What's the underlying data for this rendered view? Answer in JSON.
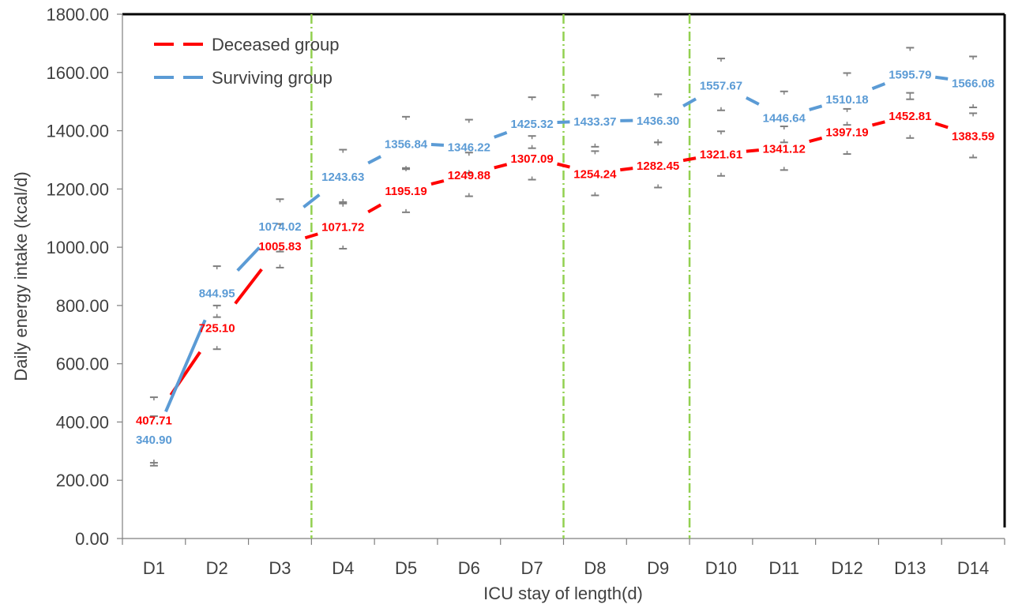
{
  "chart_data": {
    "type": "line",
    "categories": [
      "D1",
      "D2",
      "D3",
      "D4",
      "D5",
      "D6",
      "D7",
      "D8",
      "D9",
      "D10",
      "D11",
      "D12",
      "D13",
      "D14"
    ],
    "series": [
      {
        "name": "Deceased group",
        "color": "#ff0000",
        "values": [
          407.71,
          725.1,
          1005.83,
          1071.72,
          1195.19,
          1249.88,
          1307.09,
          1254.24,
          1282.45,
          1321.61,
          1341.12,
          1397.19,
          1452.81,
          1383.59
        ],
        "labels": [
          "407.71",
          "725.10",
          "1005.83",
          "1071.72",
          "1195.19",
          "1249.88",
          "1307.09",
          "1254.24",
          "1282.45",
          "1321.61",
          "1341.12",
          "1397.19",
          "1452.81",
          "1383.59"
        ],
        "error_low": [
          250,
          650,
          930,
          995,
          1120,
          1175,
          1232,
          1178,
          1205,
          1245,
          1265,
          1320,
          1375,
          1308
        ],
        "error_high": [
          485,
          800,
          1080,
          1150,
          1272,
          1325,
          1382,
          1330,
          1360,
          1398,
          1415,
          1475,
          1530,
          1460
        ]
      },
      {
        "name": "Surviving group",
        "color": "#5b9bd5",
        "values": [
          340.9,
          844.95,
          1074.02,
          1243.63,
          1356.84,
          1346.22,
          1425.32,
          1433.37,
          1436.3,
          1557.67,
          1446.64,
          1510.18,
          1595.79,
          1566.08
        ],
        "labels": [
          "340.90",
          "844.95",
          "1074.02",
          "1243.63",
          "1356.84",
          "1346.22",
          "1425.32",
          "1433.37",
          "1436.30",
          "1557.67",
          "1446.64",
          "1510.18",
          "1595.79",
          "1566.08"
        ],
        "error_low": [
          260,
          760,
          985,
          1155,
          1268,
          1255,
          1340,
          1345,
          1360,
          1470,
          1360,
          1420,
          1508,
          1480
        ],
        "error_high": [
          420,
          935,
          1165,
          1335,
          1448,
          1438,
          1515,
          1522,
          1525,
          1648,
          1535,
          1598,
          1685,
          1655
        ]
      }
    ],
    "ylim": [
      0,
      1800
    ],
    "yticks": [
      "0.00",
      "200.00",
      "400.00",
      "600.00",
      "800.00",
      "1000.00",
      "1200.00",
      "1400.00",
      "1600.00",
      "1800.00"
    ],
    "ytick_values": [
      0,
      200,
      400,
      600,
      800,
      1000,
      1200,
      1400,
      1600,
      1800
    ],
    "xlabel": "ICU stay of length(d)",
    "ylabel": "Daily energy intake  (kcal/d)",
    "reference_lines": {
      "after_categories": [
        "D3",
        "D7",
        "D9"
      ],
      "color": "#92d050",
      "style": "dash-dot"
    },
    "legend": {
      "position": "top-left",
      "entries": [
        "Deceased group",
        "Surviving group"
      ]
    },
    "grid": false
  }
}
